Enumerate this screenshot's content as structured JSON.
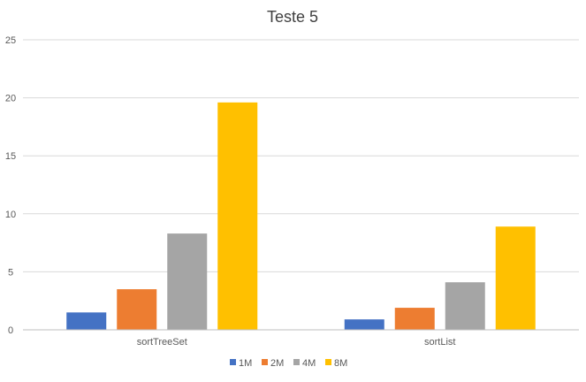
{
  "chart_data": {
    "type": "bar",
    "title": "Teste 5",
    "xlabel": "",
    "ylabel": "",
    "categories": [
      "sortTreeSet",
      "sortList"
    ],
    "series": [
      {
        "name": "1M",
        "values": [
          1.5,
          0.9
        ],
        "color": "#4472c4"
      },
      {
        "name": "2M",
        "values": [
          3.5,
          1.9
        ],
        "color": "#ed7d31"
      },
      {
        "name": "4M",
        "values": [
          8.3,
          4.1
        ],
        "color": "#a5a5a5"
      },
      {
        "name": "8M",
        "values": [
          19.6,
          8.9
        ],
        "color": "#ffc000"
      }
    ],
    "ylim": [
      0,
      25
    ],
    "yticks": [
      0,
      5,
      10,
      15,
      20,
      25
    ],
    "grid": true,
    "legend": "bottom"
  }
}
